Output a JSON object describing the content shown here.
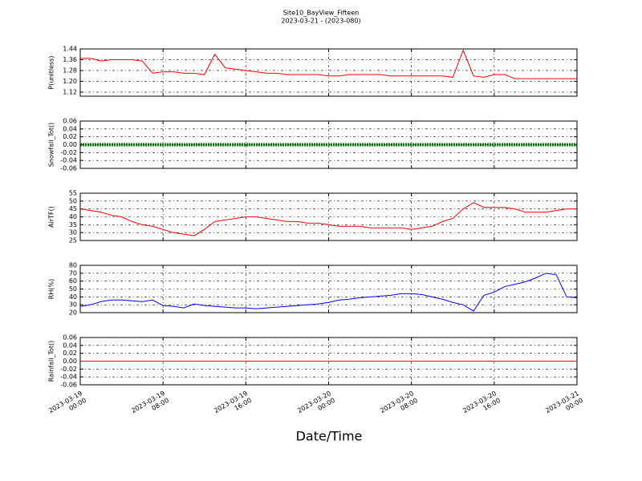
{
  "chart_data": [
    {
      "type": "line",
      "title": "Site10_BayView_Fifteen",
      "subtitle": "2023-03-21 - (2023-080)",
      "ylabel": "P(unitless)",
      "color": "#ff0000",
      "x": [
        "2023-03-19 00:00",
        "2023-03-19 01:00",
        "2023-03-19 02:00",
        "2023-03-19 03:00",
        "2023-03-19 04:00",
        "2023-03-19 05:00",
        "2023-03-19 06:00",
        "2023-03-19 07:00",
        "2023-03-19 08:00",
        "2023-03-19 09:00",
        "2023-03-19 10:00",
        "2023-03-19 11:00",
        "2023-03-19 12:00",
        "2023-03-19 13:00",
        "2023-03-19 14:00",
        "2023-03-19 15:00",
        "2023-03-19 16:00",
        "2023-03-19 17:00",
        "2023-03-19 18:00",
        "2023-03-19 19:00",
        "2023-03-19 20:00",
        "2023-03-19 21:00",
        "2023-03-19 22:00",
        "2023-03-19 23:00",
        "2023-03-20 00:00",
        "2023-03-20 01:00",
        "2023-03-20 02:00",
        "2023-03-20 03:00",
        "2023-03-20 04:00",
        "2023-03-20 05:00",
        "2023-03-20 06:00",
        "2023-03-20 07:00",
        "2023-03-20 08:00",
        "2023-03-20 09:00",
        "2023-03-20 10:00",
        "2023-03-20 11:00",
        "2023-03-20 12:00",
        "2023-03-20 13:00",
        "2023-03-20 14:00",
        "2023-03-20 15:00",
        "2023-03-20 16:00",
        "2023-03-20 17:00",
        "2023-03-20 18:00",
        "2023-03-20 19:00",
        "2023-03-20 20:00",
        "2023-03-20 21:00",
        "2023-03-20 22:00",
        "2023-03-20 23:00",
        "2023-03-21 00:00"
      ],
      "values": [
        1.37,
        1.37,
        1.35,
        1.36,
        1.36,
        1.36,
        1.35,
        1.26,
        1.27,
        1.27,
        1.26,
        1.26,
        1.25,
        1.4,
        1.3,
        1.29,
        1.28,
        1.27,
        1.26,
        1.26,
        1.25,
        1.25,
        1.25,
        1.25,
        1.24,
        1.24,
        1.25,
        1.25,
        1.25,
        1.25,
        1.24,
        1.24,
        1.24,
        1.24,
        1.24,
        1.24,
        1.23,
        1.43,
        1.24,
        1.23,
        1.25,
        1.25,
        1.22,
        1.22,
        1.22,
        1.22,
        1.22,
        1.22,
        1.22
      ],
      "ylim": [
        1.09,
        1.44
      ],
      "yticks": [
        1.12,
        {
          "value": 1.2,
          "label": "1.20"
        },
        1.28,
        1.36,
        1.44
      ]
    },
    {
      "type": "line",
      "ylabel": "Snowfall_Tot()",
      "color": "#008000",
      "markers": true,
      "x": [
        "2023-03-19 00:00",
        "2023-03-19 01:00",
        "2023-03-19 02:00",
        "2023-03-19 03:00",
        "2023-03-19 04:00",
        "2023-03-19 05:00",
        "2023-03-19 06:00",
        "2023-03-19 07:00",
        "2023-03-19 08:00",
        "2023-03-19 09:00",
        "2023-03-19 10:00",
        "2023-03-19 11:00",
        "2023-03-19 12:00",
        "2023-03-19 13:00",
        "2023-03-19 14:00",
        "2023-03-19 15:00",
        "2023-03-19 16:00",
        "2023-03-19 17:00",
        "2023-03-19 18:00",
        "2023-03-19 19:00",
        "2023-03-19 20:00",
        "2023-03-19 21:00",
        "2023-03-19 22:00",
        "2023-03-19 23:00",
        "2023-03-20 00:00",
        "2023-03-20 01:00",
        "2023-03-20 02:00",
        "2023-03-20 03:00",
        "2023-03-20 04:00",
        "2023-03-20 05:00",
        "2023-03-20 06:00",
        "2023-03-20 07:00",
        "2023-03-20 08:00",
        "2023-03-20 09:00",
        "2023-03-20 10:00",
        "2023-03-20 11:00",
        "2023-03-20 12:00",
        "2023-03-20 13:00",
        "2023-03-20 14:00",
        "2023-03-20 15:00",
        "2023-03-20 16:00",
        "2023-03-20 17:00",
        "2023-03-20 18:00",
        "2023-03-20 19:00",
        "2023-03-20 20:00",
        "2023-03-20 21:00",
        "2023-03-20 22:00",
        "2023-03-20 23:00",
        "2023-03-21 00:00"
      ],
      "values": [
        0,
        0,
        0,
        0,
        0,
        0,
        0,
        0,
        0,
        0,
        0,
        0,
        0,
        0,
        0,
        0,
        0,
        0,
        0,
        0,
        0,
        0,
        0,
        0,
        0,
        0,
        0,
        0,
        0,
        0,
        0,
        0,
        0,
        0,
        0,
        0,
        0,
        0,
        0,
        0,
        0,
        0,
        0,
        0,
        0,
        0,
        0,
        0,
        0
      ],
      "ylim": [
        -0.06,
        0.06
      ],
      "yticks": [
        -0.06,
        -0.04,
        -0.02,
        {
          "value": 0,
          "label": "0.00"
        },
        0.02,
        0.04,
        0.06
      ]
    },
    {
      "type": "line",
      "ylabel": "AirTF()",
      "color": "#ff0000",
      "x": [
        "2023-03-19 00:00",
        "2023-03-19 01:00",
        "2023-03-19 02:00",
        "2023-03-19 03:00",
        "2023-03-19 04:00",
        "2023-03-19 05:00",
        "2023-03-19 06:00",
        "2023-03-19 07:00",
        "2023-03-19 08:00",
        "2023-03-19 09:00",
        "2023-03-19 10:00",
        "2023-03-19 11:00",
        "2023-03-19 12:00",
        "2023-03-19 13:00",
        "2023-03-19 14:00",
        "2023-03-19 15:00",
        "2023-03-19 16:00",
        "2023-03-19 17:00",
        "2023-03-19 18:00",
        "2023-03-19 19:00",
        "2023-03-19 20:00",
        "2023-03-19 21:00",
        "2023-03-19 22:00",
        "2023-03-19 23:00",
        "2023-03-20 00:00",
        "2023-03-20 01:00",
        "2023-03-20 02:00",
        "2023-03-20 03:00",
        "2023-03-20 04:00",
        "2023-03-20 05:00",
        "2023-03-20 06:00",
        "2023-03-20 07:00",
        "2023-03-20 08:00",
        "2023-03-20 09:00",
        "2023-03-20 10:00",
        "2023-03-20 11:00",
        "2023-03-20 12:00",
        "2023-03-20 13:00",
        "2023-03-20 14:00",
        "2023-03-20 15:00",
        "2023-03-20 16:00",
        "2023-03-20 17:00",
        "2023-03-20 18:00",
        "2023-03-20 19:00",
        "2023-03-20 20:00",
        "2023-03-20 21:00",
        "2023-03-20 22:00",
        "2023-03-20 23:00",
        "2023-03-21 00:00"
      ],
      "values": [
        45,
        44,
        43,
        41,
        40,
        37,
        35,
        34,
        32,
        30,
        29,
        28,
        32,
        37,
        38,
        39,
        40,
        40,
        39,
        38,
        37,
        37,
        36,
        36,
        35,
        34,
        34,
        34,
        33,
        33,
        33,
        33,
        32,
        33,
        34,
        37,
        39,
        45,
        49,
        46,
        46,
        46,
        45,
        43,
        43,
        43,
        44,
        45,
        45
      ],
      "ylim": [
        25,
        55
      ],
      "yticks": [
        25,
        30,
        35,
        40,
        45,
        50,
        55
      ]
    },
    {
      "type": "line",
      "ylabel": "RH(%)",
      "color": "#0000ff",
      "x": [
        "2023-03-19 00:00",
        "2023-03-19 01:00",
        "2023-03-19 02:00",
        "2023-03-19 03:00",
        "2023-03-19 04:00",
        "2023-03-19 05:00",
        "2023-03-19 06:00",
        "2023-03-19 07:00",
        "2023-03-19 08:00",
        "2023-03-19 09:00",
        "2023-03-19 10:00",
        "2023-03-19 11:00",
        "2023-03-19 12:00",
        "2023-03-19 13:00",
        "2023-03-19 14:00",
        "2023-03-19 15:00",
        "2023-03-19 16:00",
        "2023-03-19 17:00",
        "2023-03-19 18:00",
        "2023-03-19 19:00",
        "2023-03-19 20:00",
        "2023-03-19 21:00",
        "2023-03-19 22:00",
        "2023-03-19 23:00",
        "2023-03-20 00:00",
        "2023-03-20 01:00",
        "2023-03-20 02:00",
        "2023-03-20 03:00",
        "2023-03-20 04:00",
        "2023-03-20 05:00",
        "2023-03-20 06:00",
        "2023-03-20 07:00",
        "2023-03-20 08:00",
        "2023-03-20 09:00",
        "2023-03-20 10:00",
        "2023-03-20 11:00",
        "2023-03-20 12:00",
        "2023-03-20 13:00",
        "2023-03-20 14:00",
        "2023-03-20 15:00",
        "2023-03-20 16:00",
        "2023-03-20 17:00",
        "2023-03-20 18:00",
        "2023-03-20 19:00",
        "2023-03-20 20:00",
        "2023-03-20 21:00",
        "2023-03-20 22:00",
        "2023-03-20 23:00",
        "2023-03-21 00:00"
      ],
      "values": [
        28,
        30,
        34,
        36,
        36,
        35,
        34,
        36,
        29,
        28,
        26,
        31,
        29,
        28,
        27,
        26,
        26,
        25,
        26,
        27,
        28,
        29,
        30,
        31,
        33,
        36,
        37,
        39,
        40,
        41,
        42,
        44,
        44,
        43,
        40,
        37,
        33,
        30,
        22,
        42,
        46,
        53,
        56,
        59,
        64,
        70,
        68,
        40,
        39
      ],
      "ylim": [
        20,
        80
      ],
      "yticks": [
        20,
        30,
        40,
        50,
        60,
        70,
        80
      ]
    },
    {
      "type": "line",
      "ylabel": "Rainfall_Tot()",
      "color": "#ff0000",
      "xlabel": "Date/Time",
      "x": [
        "2023-03-19 00:00",
        "2023-03-19 01:00",
        "2023-03-19 02:00",
        "2023-03-19 03:00",
        "2023-03-19 04:00",
        "2023-03-19 05:00",
        "2023-03-19 06:00",
        "2023-03-19 07:00",
        "2023-03-19 08:00",
        "2023-03-19 09:00",
        "2023-03-19 10:00",
        "2023-03-19 11:00",
        "2023-03-19 12:00",
        "2023-03-19 13:00",
        "2023-03-19 14:00",
        "2023-03-19 15:00",
        "2023-03-19 16:00",
        "2023-03-19 17:00",
        "2023-03-19 18:00",
        "2023-03-19 19:00",
        "2023-03-19 20:00",
        "2023-03-19 21:00",
        "2023-03-19 22:00",
        "2023-03-19 23:00",
        "2023-03-20 00:00",
        "2023-03-20 01:00",
        "2023-03-20 02:00",
        "2023-03-20 03:00",
        "2023-03-20 04:00",
        "2023-03-20 05:00",
        "2023-03-20 06:00",
        "2023-03-20 07:00",
        "2023-03-20 08:00",
        "2023-03-20 09:00",
        "2023-03-20 10:00",
        "2023-03-20 11:00",
        "2023-03-20 12:00",
        "2023-03-20 13:00",
        "2023-03-20 14:00",
        "2023-03-20 15:00",
        "2023-03-20 16:00",
        "2023-03-20 17:00",
        "2023-03-20 18:00",
        "2023-03-20 19:00",
        "2023-03-20 20:00",
        "2023-03-20 21:00",
        "2023-03-20 22:00",
        "2023-03-20 23:00",
        "2023-03-21 00:00"
      ],
      "values": [
        0,
        0,
        0,
        0,
        0,
        0,
        0,
        0,
        0,
        0,
        0,
        0,
        0,
        0,
        0,
        0,
        0,
        0,
        0,
        0,
        0,
        0,
        0,
        0,
        0,
        0,
        0,
        0,
        0,
        0,
        0,
        0,
        0,
        0,
        0,
        0,
        0,
        0,
        0,
        0,
        0,
        0,
        0,
        0,
        0,
        0,
        0,
        0,
        0
      ],
      "ylim": [
        -0.06,
        0.06
      ],
      "yticks": [
        -0.06,
        -0.04,
        -0.02,
        {
          "value": 0,
          "label": "0.00"
        },
        0.02,
        0.04,
        0.06
      ],
      "xlim": [
        "2023-03-19 00:00",
        "2023-03-21 00:00"
      ],
      "xticks": [
        {
          "value": "2023-03-19 00:00",
          "label": "2023-03-19\n00:00"
        },
        {
          "value": "2023-03-19 08:00",
          "label": "2023-03-19\n08:00"
        },
        {
          "value": "2023-03-19 16:00",
          "label": "2023-03-19\n16:00"
        },
        {
          "value": "2023-03-20 00:00",
          "label": "2023-03-20\n00:00"
        },
        {
          "value": "2023-03-20 08:00",
          "label": "2023-03-20\n08:00"
        },
        {
          "value": "2023-03-20 16:00",
          "label": "2023-03-20\n16:00"
        },
        {
          "value": "2023-03-21 00:00",
          "label": "2023-03-21\n00:00"
        }
      ],
      "grid": true
    }
  ]
}
